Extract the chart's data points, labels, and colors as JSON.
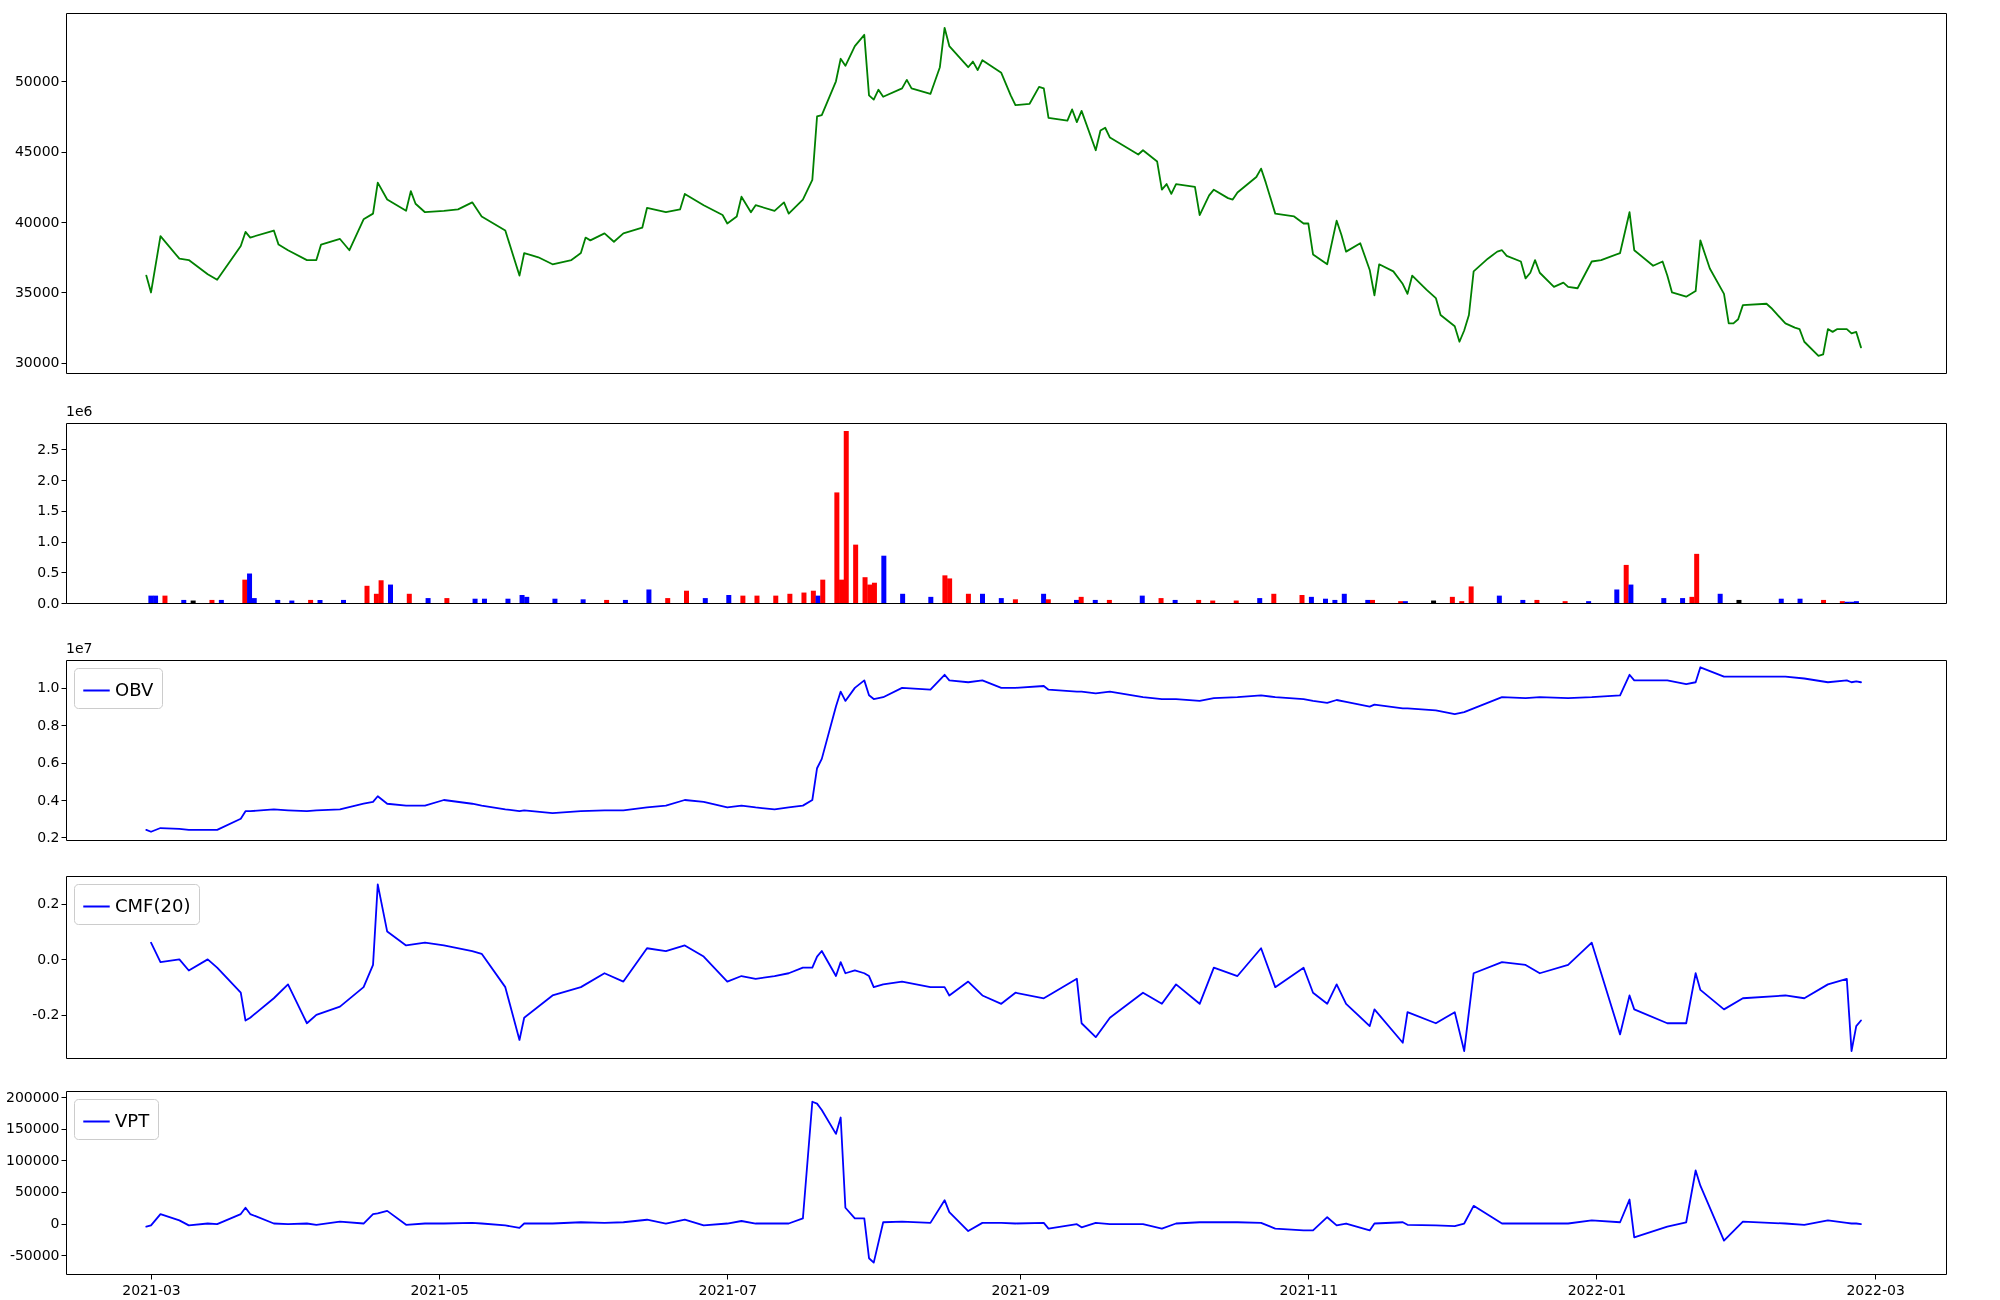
{
  "chart_data": [
    {
      "type": "line",
      "xlim": [
        "2021-02-11",
        "2022-03-16"
      ],
      "ylim": [
        29280,
        54850
      ],
      "yticks": [
        30000,
        35000,
        40000,
        45000,
        50000
      ],
      "tick_labels": "y",
      "series": [
        {
          "color": "#008000",
          "x": [
            "2021-02-28",
            "2021-03-01",
            "2021-03-03",
            "2021-03-07",
            "2021-03-09",
            "2021-03-13",
            "2021-03-15",
            "2021-03-20",
            "2021-03-21",
            "2021-03-22",
            "2021-03-27",
            "2021-03-28",
            "2021-03-30",
            "2021-04-03",
            "2021-04-05",
            "2021-04-06",
            "2021-04-10",
            "2021-04-12",
            "2021-04-15",
            "2021-04-17",
            "2021-04-18",
            "2021-04-20",
            "2021-04-24",
            "2021-04-25",
            "2021-04-26",
            "2021-04-28",
            "2021-05-02",
            "2021-05-05",
            "2021-05-08",
            "2021-05-10",
            "2021-05-15",
            "2021-05-18",
            "2021-05-19",
            "2021-05-22",
            "2021-05-25",
            "2021-05-29",
            "2021-05-31",
            "2021-06-01",
            "2021-06-02",
            "2021-06-05",
            "2021-06-07",
            "2021-06-09",
            "2021-06-13",
            "2021-06-14",
            "2021-06-18",
            "2021-06-21",
            "2021-06-22",
            "2021-06-26",
            "2021-06-30",
            "2021-07-01",
            "2021-07-03",
            "2021-07-04",
            "2021-07-06",
            "2021-07-07",
            "2021-07-11",
            "2021-07-13",
            "2021-07-14",
            "2021-07-17",
            "2021-07-19",
            "2021-07-20",
            "2021-07-21",
            "2021-07-24",
            "2021-07-25",
            "2021-07-26",
            "2021-07-28",
            "2021-07-30",
            "2021-07-31",
            "2021-08-01",
            "2021-08-02",
            "2021-08-03",
            "2021-08-07",
            "2021-08-08",
            "2021-08-09",
            "2021-08-13",
            "2021-08-15",
            "2021-08-16",
            "2021-08-17",
            "2021-08-21",
            "2021-08-22",
            "2021-08-23",
            "2021-08-24",
            "2021-08-28",
            "2021-08-30",
            "2021-08-31",
            "2021-09-03",
            "2021-09-05",
            "2021-09-06",
            "2021-09-07",
            "2021-09-11",
            "2021-09-12",
            "2021-09-13",
            "2021-09-14",
            "2021-09-17",
            "2021-09-18",
            "2021-09-19",
            "2021-09-20",
            "2021-09-26",
            "2021-09-27",
            "2021-09-30",
            "2021-10-01",
            "2021-10-02",
            "2021-10-03",
            "2021-10-04",
            "2021-10-08",
            "2021-10-09",
            "2021-10-11",
            "2021-10-12",
            "2021-10-15",
            "2021-10-16",
            "2021-10-17",
            "2021-10-21",
            "2021-10-22",
            "2021-10-23",
            "2021-10-25",
            "2021-10-29",
            "2021-10-31",
            "2021-11-01",
            "2021-11-02",
            "2021-11-05",
            "2021-11-07",
            "2021-11-08",
            "2021-11-09",
            "2021-11-12",
            "2021-11-14",
            "2021-11-15",
            "2021-11-16",
            "2021-11-19",
            "2021-11-21",
            "2021-11-22",
            "2021-11-23",
            "2021-11-26",
            "2021-11-28",
            "2021-11-29",
            "2021-12-02",
            "2021-12-03",
            "2021-12-04",
            "2021-12-05",
            "2021-12-06",
            "2021-12-09",
            "2021-12-11",
            "2021-12-12",
            "2021-12-13",
            "2021-12-16",
            "2021-12-17",
            "2021-12-18",
            "2021-12-19",
            "2021-12-20",
            "2021-12-23",
            "2021-12-25",
            "2021-12-26",
            "2021-12-28",
            "2021-12-31",
            "2022-01-02",
            "2022-01-06",
            "2022-01-08",
            "2022-01-09",
            "2022-01-13",
            "2022-01-15",
            "2022-01-16",
            "2022-01-17",
            "2022-01-20",
            "2022-01-22",
            "2022-01-23",
            "2022-01-25",
            "2022-01-28",
            "2022-01-29",
            "2022-01-30",
            "2022-01-31",
            "2022-02-01",
            "2022-02-06",
            "2022-02-07",
            "2022-02-10",
            "2022-02-12",
            "2022-02-13",
            "2022-02-14",
            "2022-02-17",
            "2022-02-18",
            "2022-02-19",
            "2022-02-20",
            "2022-02-21",
            "2022-02-23",
            "2022-02-24",
            "2022-02-25",
            "2022-02-26"
          ],
          "values": [
            36200,
            35000,
            39000,
            37400,
            37300,
            36300,
            35900,
            38300,
            39300,
            38900,
            39400,
            38400,
            38000,
            37300,
            37300,
            38400,
            38800,
            38000,
            40200,
            40600,
            42800,
            41600,
            40800,
            42200,
            41300,
            40700,
            40800,
            40900,
            41400,
            40400,
            39400,
            36200,
            37800,
            37500,
            37000,
            37300,
            37800,
            38900,
            38700,
            39200,
            38600,
            39200,
            39600,
            41000,
            40700,
            40900,
            42000,
            41200,
            40500,
            39900,
            40400,
            41800,
            40700,
            41200,
            40800,
            41400,
            40600,
            41600,
            43000,
            47500,
            47600,
            50000,
            51600,
            51100,
            52500,
            53300,
            49000,
            48700,
            49400,
            48900,
            49500,
            50100,
            49500,
            49100,
            51000,
            53800,
            52500,
            51000,
            51400,
            50800,
            51500,
            50600,
            49000,
            48300,
            48400,
            49600,
            49500,
            47400,
            47200,
            48000,
            47100,
            47900,
            45100,
            46500,
            46700,
            46000,
            44800,
            45100,
            44300,
            42300,
            42700,
            42000,
            42700,
            42500,
            40500,
            41900,
            42300,
            41700,
            41600,
            42100,
            43200,
            43800,
            42800,
            40600,
            40400,
            39900,
            39900,
            37700,
            37000,
            40100,
            39100,
            37900,
            38500,
            36600,
            34800,
            37000,
            36500,
            35600,
            34900,
            36200,
            35200,
            34600,
            33400,
            32600,
            31500,
            32300,
            33400,
            36500,
            37400,
            37900,
            38000,
            37600,
            37200,
            36000,
            36400,
            37300,
            36400,
            35400,
            35700,
            35400,
            35300,
            37200,
            37300,
            37800,
            40700,
            38000,
            36900,
            37200,
            36200,
            35000,
            34700,
            35100,
            38700,
            36700,
            34900,
            32800,
            32800,
            33100,
            34100,
            34200,
            33900,
            32800,
            32500,
            32400,
            31500,
            30500,
            30600,
            32400,
            32200,
            32400,
            32400,
            32100,
            32200,
            31100
          ]
        }
      ]
    },
    {
      "type": "bar",
      "xlim": [
        "2021-02-11",
        "2022-03-16"
      ],
      "ylim": [
        0,
        2.93
      ],
      "yticks": [
        {
          "value": 0,
          "label": "0.0"
        },
        0.5,
        {
          "value": 1,
          "label": "1.0"
        },
        1.5,
        {
          "value": 2,
          "label": "2.0"
        },
        2.5
      ],
      "tick_labels": "y",
      "annotations": [
        "1e6"
      ],
      "x": [
        "2021-02-28",
        "2021-03-01",
        "2021-03-03",
        "2021-03-07",
        "2021-03-09",
        "2021-03-13",
        "2021-03-15",
        "2021-03-20",
        "2021-03-21",
        "2021-03-22",
        "2021-03-27",
        "2021-03-30",
        "2021-04-03",
        "2021-04-05",
        "2021-04-10",
        "2021-04-15",
        "2021-04-17",
        "2021-04-18",
        "2021-04-20",
        "2021-04-24",
        "2021-04-28",
        "2021-05-02",
        "2021-05-08",
        "2021-05-10",
        "2021-05-15",
        "2021-05-18",
        "2021-05-19",
        "2021-05-25",
        "2021-05-31",
        "2021-06-05",
        "2021-06-09",
        "2021-06-14",
        "2021-06-18",
        "2021-06-22",
        "2021-06-26",
        "2021-07-01",
        "2021-07-04",
        "2021-07-07",
        "2021-07-11",
        "2021-07-14",
        "2021-07-17",
        "2021-07-19",
        "2021-07-20",
        "2021-07-21",
        "2021-07-24",
        "2021-07-25",
        "2021-07-26",
        "2021-07-28",
        "2021-07-30",
        "2021-07-31",
        "2021-08-01",
        "2021-08-03",
        "2021-08-07",
        "2021-08-13",
        "2021-08-16",
        "2021-08-17",
        "2021-08-21",
        "2021-08-24",
        "2021-08-28",
        "2021-08-31",
        "2021-09-06",
        "2021-09-07",
        "2021-09-13",
        "2021-09-14",
        "2021-09-17",
        "2021-09-20",
        "2021-09-27",
        "2021-10-01",
        "2021-10-04",
        "2021-10-09",
        "2021-10-12",
        "2021-10-17",
        "2021-10-22",
        "2021-10-25",
        "2021-10-31",
        "2021-11-02",
        "2021-11-05",
        "2021-11-07",
        "2021-11-09",
        "2021-11-14",
        "2021-11-15",
        "2021-11-21",
        "2021-11-22",
        "2021-11-28",
        "2021-12-02",
        "2021-12-04",
        "2021-12-06",
        "2021-12-12",
        "2021-12-17",
        "2021-12-20",
        "2021-12-26",
        "2021-12-31",
        "2022-01-06",
        "2022-01-08",
        "2022-01-09",
        "2022-01-16",
        "2022-01-20",
        "2022-01-22",
        "2022-01-23",
        "2022-01-28",
        "2022-02-01",
        "2022-02-10",
        "2022-02-14",
        "2022-02-19",
        "2022-02-23",
        "2022-02-24",
        "2022-02-25",
        "2022-02-26"
      ],
      "values": [
        0.12,
        0.12,
        0.12,
        0.05,
        0.04,
        0.05,
        0.05,
        0.38,
        0.48,
        0.08,
        0.05,
        0.04,
        0.05,
        0.05,
        0.05,
        0.28,
        0.15,
        0.37,
        0.3,
        0.15,
        0.08,
        0.08,
        0.07,
        0.07,
        0.07,
        0.13,
        0.1,
        0.07,
        0.06,
        0.05,
        0.05,
        0.22,
        0.08,
        0.2,
        0.08,
        0.13,
        0.12,
        0.12,
        0.12,
        0.15,
        0.17,
        0.2,
        0.12,
        0.38,
        1.8,
        0.38,
        2.8,
        0.95,
        0.42,
        0.3,
        0.33,
        0.77,
        0.15,
        0.1,
        0.45,
        0.4,
        0.15,
        0.15,
        0.08,
        0.06,
        0.15,
        0.06,
        0.05,
        0.1,
        0.05,
        0.05,
        0.12,
        0.08,
        0.05,
        0.05,
        0.04,
        0.04,
        0.08,
        0.15,
        0.13,
        0.1,
        0.07,
        0.05,
        0.15,
        0.05,
        0.05,
        0.03,
        0.03,
        0.04,
        0.1,
        0.03,
        0.27,
        0.12,
        0.05,
        0.05,
        0.03,
        0.03,
        0.22,
        0.62,
        0.3,
        0.08,
        0.08,
        0.1,
        0.8,
        0.15,
        0.05,
        0.07,
        0.07,
        0.05,
        0.03,
        0.02,
        0.02,
        0.03
      ],
      "colors": [
        "#0000ff",
        "#0000ff",
        "#ff0000",
        "#0000ff",
        "#000000",
        "#ff0000",
        "#0000ff",
        "#ff0000",
        "#0000ff",
        "#0000ff",
        "#0000ff",
        "#0000ff",
        "#ff0000",
        "#0000ff",
        "#0000ff",
        "#ff0000",
        "#ff0000",
        "#ff0000",
        "#0000ff",
        "#ff0000",
        "#0000ff",
        "#ff0000",
        "#0000ff",
        "#0000ff",
        "#0000ff",
        "#0000ff",
        "#0000ff",
        "#0000ff",
        "#0000ff",
        "#ff0000",
        "#0000ff",
        "#0000ff",
        "#ff0000",
        "#ff0000",
        "#0000ff",
        "#0000ff",
        "#ff0000",
        "#ff0000",
        "#ff0000",
        "#ff0000",
        "#ff0000",
        "#ff0000",
        "#0000ff",
        "#ff0000",
        "#ff0000",
        "#ff0000",
        "#ff0000",
        "#ff0000",
        "#ff0000",
        "#ff0000",
        "#ff0000",
        "#0000ff",
        "#0000ff",
        "#0000ff",
        "#ff0000",
        "#ff0000",
        "#ff0000",
        "#0000ff",
        "#0000ff",
        "#ff0000",
        "#0000ff",
        "#ff0000",
        "#0000ff",
        "#ff0000",
        "#0000ff",
        "#ff0000",
        "#0000ff",
        "#ff0000",
        "#0000ff",
        "#ff0000",
        "#ff0000",
        "#ff0000",
        "#0000ff",
        "#ff0000",
        "#ff0000",
        "#0000ff",
        "#0000ff",
        "#0000ff",
        "#0000ff",
        "#0000ff",
        "#ff0000",
        "#ff0000",
        "#0000ff",
        "#000000",
        "#ff0000",
        "#ff0000",
        "#ff0000",
        "#0000ff",
        "#0000ff",
        "#ff0000",
        "#ff0000",
        "#0000ff",
        "#0000ff",
        "#ff0000",
        "#0000ff",
        "#0000ff",
        "#0000ff",
        "#ff0000",
        "#ff0000",
        "#0000ff",
        "#000000",
        "#0000ff",
        "#0000ff",
        "#ff0000",
        "#ff0000",
        "#0000ff",
        "#0000ff",
        "#0000ff"
      ]
    },
    {
      "type": "line",
      "xlim": [
        "2021-02-11",
        "2022-03-16"
      ],
      "ylim": [
        0.186,
        1.149
      ],
      "yticks": [
        0.2,
        0.4,
        0.6,
        0.8,
        {
          "value": 1,
          "label": "1.0"
        }
      ],
      "tick_labels": "y",
      "annotations": [
        "1e7"
      ],
      "legend": "top left",
      "series": [
        {
          "name": "OBV",
          "color": "#0000ff",
          "x": [
            "2021-02-28",
            "2021-03-01",
            "2021-03-03",
            "2021-03-07",
            "2021-03-09",
            "2021-03-13",
            "2021-03-15",
            "2021-03-20",
            "2021-03-21",
            "2021-03-22",
            "2021-03-27",
            "2021-03-30",
            "2021-04-03",
            "2021-04-05",
            "2021-04-10",
            "2021-04-15",
            "2021-04-17",
            "2021-04-18",
            "2021-04-20",
            "2021-04-24",
            "2021-04-28",
            "2021-05-02",
            "2021-05-08",
            "2021-05-10",
            "2021-05-15",
            "2021-05-18",
            "2021-05-19",
            "2021-05-25",
            "2021-05-31",
            "2021-06-05",
            "2021-06-09",
            "2021-06-14",
            "2021-06-18",
            "2021-06-22",
            "2021-06-26",
            "2021-07-01",
            "2021-07-04",
            "2021-07-07",
            "2021-07-11",
            "2021-07-14",
            "2021-07-17",
            "2021-07-19",
            "2021-07-20",
            "2021-07-21",
            "2021-07-24",
            "2021-07-25",
            "2021-07-26",
            "2021-07-28",
            "2021-07-30",
            "2021-07-31",
            "2021-08-01",
            "2021-08-03",
            "2021-08-07",
            "2021-08-13",
            "2021-08-16",
            "2021-08-17",
            "2021-08-21",
            "2021-08-24",
            "2021-08-28",
            "2021-08-31",
            "2021-09-06",
            "2021-09-07",
            "2021-09-13",
            "2021-09-14",
            "2021-09-17",
            "2021-09-20",
            "2021-09-27",
            "2021-10-01",
            "2021-10-04",
            "2021-10-09",
            "2021-10-12",
            "2021-10-17",
            "2021-10-22",
            "2021-10-25",
            "2021-10-31",
            "2021-11-02",
            "2021-11-05",
            "2021-11-07",
            "2021-11-09",
            "2021-11-14",
            "2021-11-15",
            "2021-11-21",
            "2021-11-22",
            "2021-11-28",
            "2021-12-02",
            "2021-12-04",
            "2021-12-06",
            "2021-12-12",
            "2021-12-17",
            "2021-12-20",
            "2021-12-26",
            "2021-12-31",
            "2022-01-06",
            "2022-01-08",
            "2022-01-09",
            "2022-01-16",
            "2022-01-20",
            "2022-01-22",
            "2022-01-23",
            "2022-01-28",
            "2022-02-01",
            "2022-02-10",
            "2022-02-14",
            "2022-02-19",
            "2022-02-23",
            "2022-02-24",
            "2022-02-25",
            "2022-02-26"
          ],
          "values": [
            0.24,
            0.23,
            0.25,
            0.245,
            0.24,
            0.24,
            0.24,
            0.3,
            0.34,
            0.34,
            0.35,
            0.345,
            0.34,
            0.345,
            0.35,
            0.38,
            0.39,
            0.42,
            0.38,
            0.37,
            0.37,
            0.4,
            0.38,
            0.37,
            0.35,
            0.34,
            0.345,
            0.33,
            0.34,
            0.345,
            0.345,
            0.36,
            0.37,
            0.4,
            0.39,
            0.36,
            0.37,
            0.36,
            0.35,
            0.36,
            0.37,
            0.4,
            0.57,
            0.62,
            0.9,
            0.98,
            0.93,
            1.0,
            1.04,
            0.96,
            0.94,
            0.95,
            1.0,
            0.99,
            1.07,
            1.04,
            1.03,
            1.04,
            1.0,
            1.0,
            1.01,
            0.99,
            0.98,
            0.98,
            0.97,
            0.98,
            0.95,
            0.94,
            0.94,
            0.93,
            0.945,
            0.95,
            0.96,
            0.95,
            0.94,
            0.93,
            0.92,
            0.935,
            0.925,
            0.9,
            0.91,
            0.89,
            0.89,
            0.88,
            0.86,
            0.87,
            0.89,
            0.95,
            0.945,
            0.95,
            0.945,
            0.95,
            0.96,
            1.07,
            1.04,
            1.04,
            1.02,
            1.03,
            1.11,
            1.06,
            1.06,
            1.06,
            1.05,
            1.03,
            1.04,
            1.03,
            1.035,
            1.03
          ]
        }
      ]
    },
    {
      "type": "line",
      "xlim": [
        "2021-02-11",
        "2022-03-16"
      ],
      "ylim": [
        -0.355,
        0.3
      ],
      "yticks": [
        -0.2,
        {
          "value": 0,
          "label": "0.0"
        },
        0.2
      ],
      "tick_labels": "y",
      "legend": "top left",
      "series": [
        {
          "name": "CMF(20)",
          "color": "#0000ff",
          "x": [
            "2021-03-01",
            "2021-03-03",
            "2021-03-07",
            "2021-03-09",
            "2021-03-13",
            "2021-03-15",
            "2021-03-20",
            "2021-03-21",
            "2021-03-22",
            "2021-03-27",
            "2021-03-30",
            "2021-04-03",
            "2021-04-05",
            "2021-04-10",
            "2021-04-15",
            "2021-04-17",
            "2021-04-18",
            "2021-04-20",
            "2021-04-24",
            "2021-04-28",
            "2021-05-02",
            "2021-05-08",
            "2021-05-10",
            "2021-05-15",
            "2021-05-18",
            "2021-05-19",
            "2021-05-25",
            "2021-05-31",
            "2021-06-05",
            "2021-06-09",
            "2021-06-14",
            "2021-06-18",
            "2021-06-22",
            "2021-06-26",
            "2021-07-01",
            "2021-07-04",
            "2021-07-07",
            "2021-07-11",
            "2021-07-14",
            "2021-07-17",
            "2021-07-19",
            "2021-07-20",
            "2021-07-21",
            "2021-07-24",
            "2021-07-25",
            "2021-07-26",
            "2021-07-28",
            "2021-07-30",
            "2021-07-31",
            "2021-08-01",
            "2021-08-03",
            "2021-08-07",
            "2021-08-13",
            "2021-08-16",
            "2021-08-17",
            "2021-08-21",
            "2021-08-24",
            "2021-08-28",
            "2021-08-31",
            "2021-09-06",
            "2021-09-07",
            "2021-09-13",
            "2021-09-14",
            "2021-09-17",
            "2021-09-20",
            "2021-09-27",
            "2021-10-01",
            "2021-10-04",
            "2021-10-09",
            "2021-10-12",
            "2021-10-17",
            "2021-10-22",
            "2021-10-25",
            "2021-10-31",
            "2021-11-02",
            "2021-11-05",
            "2021-11-07",
            "2021-11-09",
            "2021-11-14",
            "2021-11-15",
            "2021-11-21",
            "2021-11-22",
            "2021-11-28",
            "2021-12-02",
            "2021-12-04",
            "2021-12-06",
            "2021-12-12",
            "2021-12-17",
            "2021-12-20",
            "2021-12-26",
            "2021-12-31",
            "2022-01-06",
            "2022-01-08",
            "2022-01-09",
            "2022-01-16",
            "2022-01-20",
            "2022-01-22",
            "2022-01-23",
            "2022-01-28",
            "2022-02-01",
            "2022-02-10",
            "2022-02-14",
            "2022-02-19",
            "2022-02-23",
            "2022-02-24",
            "2022-02-25",
            "2022-02-26"
          ],
          "values": [
            0.06,
            -0.01,
            0.0,
            -0.04,
            0.0,
            -0.03,
            -0.12,
            -0.22,
            -0.21,
            -0.14,
            -0.09,
            -0.23,
            -0.2,
            -0.17,
            -0.1,
            -0.02,
            0.27,
            0.1,
            0.05,
            0.06,
            0.05,
            0.03,
            0.02,
            -0.1,
            -0.29,
            -0.21,
            -0.13,
            -0.1,
            -0.05,
            -0.08,
            0.04,
            0.03,
            0.05,
            0.01,
            -0.08,
            -0.06,
            -0.07,
            -0.06,
            -0.05,
            -0.03,
            -0.03,
            0.01,
            0.03,
            -0.06,
            -0.01,
            -0.05,
            -0.04,
            -0.05,
            -0.06,
            -0.1,
            -0.09,
            -0.08,
            -0.1,
            -0.1,
            -0.13,
            -0.08,
            -0.13,
            -0.16,
            -0.12,
            -0.14,
            -0.13,
            -0.07,
            -0.23,
            -0.28,
            -0.21,
            -0.12,
            -0.16,
            -0.09,
            -0.16,
            -0.03,
            -0.06,
            0.04,
            -0.1,
            -0.03,
            -0.12,
            -0.16,
            -0.09,
            -0.16,
            -0.24,
            -0.18,
            -0.3,
            -0.19,
            -0.23,
            -0.19,
            -0.33,
            -0.05,
            -0.01,
            -0.02,
            -0.05,
            -0.02,
            0.06,
            -0.27,
            -0.13,
            -0.18,
            -0.23,
            -0.23,
            -0.05,
            -0.11,
            -0.18,
            -0.14,
            -0.13,
            -0.14,
            -0.09,
            -0.07,
            -0.33,
            -0.24,
            -0.22
          ]
        }
      ]
    },
    {
      "type": "line",
      "xlim": [
        "2021-02-11",
        "2022-03-16"
      ],
      "ylim": [
        -80000,
        210000
      ],
      "yticks": [
        -50000,
        0,
        50000,
        100000,
        150000,
        200000
      ],
      "legend": "top left",
      "xticks": [
        {
          "value": "2021-03-01",
          "label": "2021-03"
        },
        {
          "value": "2021-05-01",
          "label": "2021-05"
        },
        {
          "value": "2021-07-01",
          "label": "2021-07"
        },
        {
          "value": "2021-09-01",
          "label": "2021-09"
        },
        {
          "value": "2021-11-01",
          "label": "2021-11"
        },
        {
          "value": "2022-01-01",
          "label": "2022-01"
        },
        {
          "value": "2022-03-01",
          "label": "2022-03"
        }
      ],
      "series": [
        {
          "name": "VPT",
          "color": "#0000ff",
          "x": [
            "2021-02-28",
            "2021-03-01",
            "2021-03-03",
            "2021-03-07",
            "2021-03-09",
            "2021-03-13",
            "2021-03-15",
            "2021-03-20",
            "2021-03-21",
            "2021-03-22",
            "2021-03-27",
            "2021-03-30",
            "2021-04-03",
            "2021-04-05",
            "2021-04-10",
            "2021-04-15",
            "2021-04-17",
            "2021-04-18",
            "2021-04-20",
            "2021-04-24",
            "2021-04-28",
            "2021-05-02",
            "2021-05-08",
            "2021-05-10",
            "2021-05-15",
            "2021-05-18",
            "2021-05-19",
            "2021-05-25",
            "2021-05-31",
            "2021-06-05",
            "2021-06-09",
            "2021-06-14",
            "2021-06-18",
            "2021-06-22",
            "2021-06-26",
            "2021-07-01",
            "2021-07-04",
            "2021-07-07",
            "2021-07-11",
            "2021-07-14",
            "2021-07-17",
            "2021-07-19",
            "2021-07-20",
            "2021-07-21",
            "2021-07-24",
            "2021-07-25",
            "2021-07-26",
            "2021-07-28",
            "2021-07-30",
            "2021-07-31",
            "2021-08-01",
            "2021-08-03",
            "2021-08-07",
            "2021-08-13",
            "2021-08-16",
            "2021-08-17",
            "2021-08-21",
            "2021-08-24",
            "2021-08-28",
            "2021-08-31",
            "2021-09-06",
            "2021-09-07",
            "2021-09-13",
            "2021-09-14",
            "2021-09-17",
            "2021-09-20",
            "2021-09-27",
            "2021-10-01",
            "2021-10-04",
            "2021-10-09",
            "2021-10-12",
            "2021-10-17",
            "2021-10-22",
            "2021-10-25",
            "2021-10-31",
            "2021-11-02",
            "2021-11-05",
            "2021-11-07",
            "2021-11-09",
            "2021-11-14",
            "2021-11-15",
            "2021-11-21",
            "2021-11-22",
            "2021-11-28",
            "2021-12-02",
            "2021-12-04",
            "2021-12-06",
            "2021-12-12",
            "2021-12-17",
            "2021-12-20",
            "2021-12-26",
            "2021-12-31",
            "2022-01-06",
            "2022-01-08",
            "2022-01-09",
            "2022-01-16",
            "2022-01-20",
            "2022-01-22",
            "2022-01-23",
            "2022-01-28",
            "2022-02-01",
            "2022-02-10",
            "2022-02-14",
            "2022-02-19",
            "2022-02-23",
            "2022-02-24",
            "2022-02-25",
            "2022-02-26"
          ],
          "values": [
            -5000,
            -3000,
            15000,
            5000,
            -3000,
            0,
            -1000,
            15000,
            25000,
            15000,
            0,
            -1000,
            0,
            -2000,
            3000,
            0,
            15000,
            16000,
            20000,
            -2000,
            0,
            0,
            1000,
            0,
            -3000,
            -7000,
            0,
            0,
            2000,
            1000,
            2000,
            6000,
            0,
            6000,
            -3000,
            0,
            4000,
            0,
            0,
            0,
            8000,
            193000,
            190000,
            180000,
            142000,
            168000,
            25000,
            8000,
            8000,
            -55000,
            -62000,
            2000,
            3000,
            1000,
            37000,
            18000,
            -12000,
            1000,
            1000,
            0,
            1000,
            -8000,
            -1000,
            -6000,
            1000,
            -1000,
            -1000,
            -8000,
            0,
            2000,
            2000,
            2000,
            1000,
            -8000,
            -11000,
            -11000,
            10000,
            -3000,
            0,
            -11000,
            0,
            2000,
            -2000,
            -3000,
            -4000,
            0,
            28000,
            0,
            0,
            0,
            0,
            5000,
            2000,
            38000,
            -22000,
            -5000,
            2000,
            84000,
            60000,
            -27000,
            3000,
            0,
            -2000,
            5000,
            1000,
            0,
            0,
            -1000
          ]
        }
      ]
    }
  ]
}
